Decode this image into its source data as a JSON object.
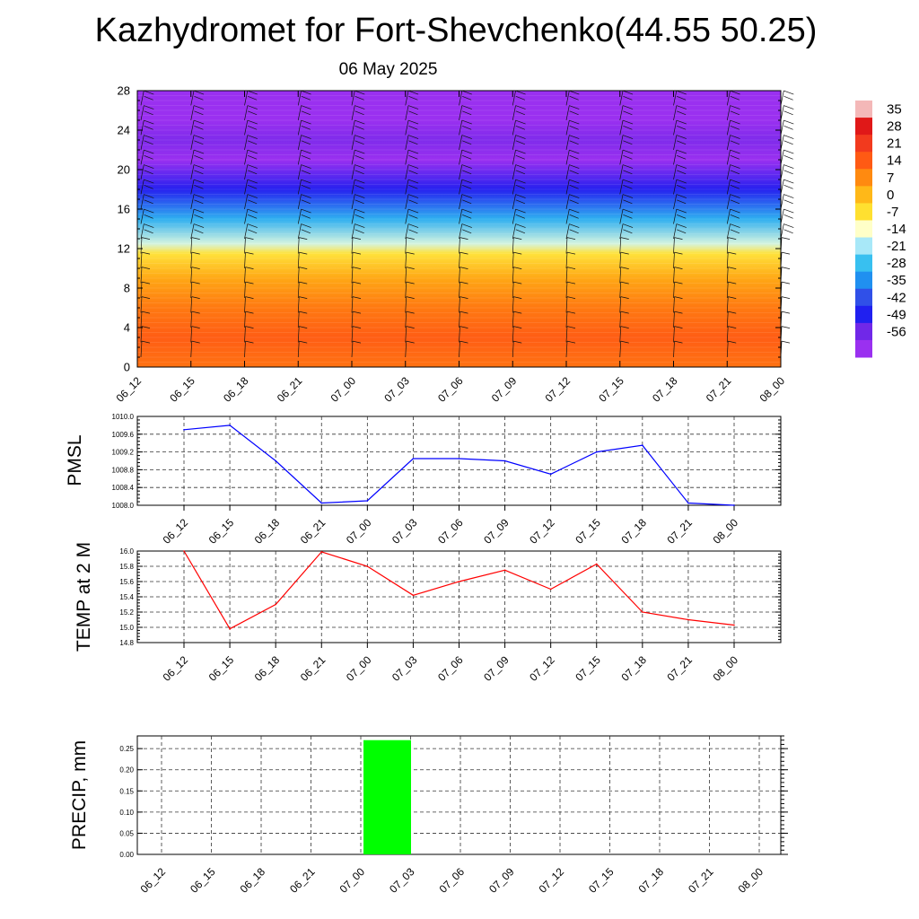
{
  "page": {
    "title": "Kazhydromet for Fort-Shevchenko(44.55 50.25)",
    "subtitle": "06 May 2025"
  },
  "chart_data": [
    {
      "type": "heatmap",
      "title": "",
      "x_ticks": [
        "06_12",
        "06_15",
        "06_18",
        "06_21",
        "07_00",
        "07_03",
        "07_06",
        "07_09",
        "07_12",
        "07_15",
        "07_18",
        "07_21",
        "08_00"
      ],
      "y_ticks": [
        "0",
        "4",
        "8",
        "12",
        "16",
        "20",
        "24",
        "28"
      ],
      "ylim": [
        0,
        28
      ],
      "colorbar": {
        "labels": [
          "35",
          "28",
          "21",
          "14",
          "7",
          "0",
          "-7",
          "-14",
          "-21",
          "-28",
          "-35",
          "-42",
          "-49",
          "-56"
        ],
        "colors": [
          "#f4b8b8",
          "#e01818",
          "#f23a1e",
          "#ff5a14",
          "#ff8a10",
          "#ffb818",
          "#ffe030",
          "#ffffc8",
          "#a8e8f8",
          "#38c0f0",
          "#2090f0",
          "#3050e8",
          "#2020f0",
          "#7028e8",
          "#9a30f0"
        ]
      },
      "profile": [
        {
          "level": 0,
          "value": 14
        },
        {
          "level": 3,
          "value": 17
        },
        {
          "level": 6,
          "value": 13
        },
        {
          "level": 9,
          "value": 6
        },
        {
          "level": 11.5,
          "value": -4
        },
        {
          "level": 12.5,
          "value": -14
        },
        {
          "level": 15,
          "value": -27
        },
        {
          "level": 18,
          "value": -46
        },
        {
          "level": 21,
          "value": -60
        },
        {
          "level": 23,
          "value": -55
        },
        {
          "level": 25,
          "value": -63
        },
        {
          "level": 28,
          "value": -66
        }
      ]
    },
    {
      "type": "line",
      "ylabel": "PMSL",
      "color": "#0000ff",
      "categories": [
        "06_12",
        "06_15",
        "06_18",
        "06_21",
        "07_00",
        "07_03",
        "07_06",
        "07_09",
        "07_12",
        "07_15",
        "07_18",
        "07_21",
        "08_00"
      ],
      "values": [
        1009.7,
        1009.8,
        1009.0,
        1008.05,
        1008.1,
        1009.05,
        1009.05,
        1009.0,
        1008.7,
        1009.2,
        1009.35,
        1008.05,
        1008.0
      ],
      "ylim": [
        1008.0,
        1010.0
      ],
      "y_ticks": [
        "1008.0",
        "1008.4",
        "1008.8",
        "1009.2",
        "1009.6",
        "1010.0"
      ]
    },
    {
      "type": "line",
      "ylabel": "TEMP at 2 M",
      "color": "#ff0000",
      "categories": [
        "06_12",
        "06_15",
        "06_18",
        "06_21",
        "07_00",
        "07_03",
        "07_06",
        "07_09",
        "07_12",
        "07_15",
        "07_18",
        "07_21",
        "08_00"
      ],
      "values": [
        16.0,
        14.98,
        15.3,
        15.99,
        15.8,
        15.42,
        15.6,
        15.75,
        15.5,
        15.83,
        15.2,
        15.1,
        15.03
      ],
      "ylim": [
        14.8,
        16.0
      ],
      "y_ticks": [
        "14.8",
        "15.0",
        "15.2",
        "15.4",
        "15.6",
        "15.8",
        "16.0"
      ]
    },
    {
      "type": "bar",
      "ylabel": "PRECIP, mm",
      "color": "#00ff00",
      "categories": [
        "06_12",
        "06_15",
        "06_18",
        "06_21",
        "07_00",
        "07_03",
        "07_06",
        "07_09",
        "07_12",
        "07_15",
        "07_18",
        "07_21",
        "08_00"
      ],
      "values": [
        0,
        0,
        0,
        0,
        0,
        0.27,
        0,
        0,
        0,
        0,
        0,
        0,
        0
      ],
      "ylim": [
        0,
        0.28
      ],
      "y_ticks": [
        "0.00",
        "0.05",
        "0.10",
        "0.15",
        "0.20",
        "0.25"
      ]
    }
  ]
}
